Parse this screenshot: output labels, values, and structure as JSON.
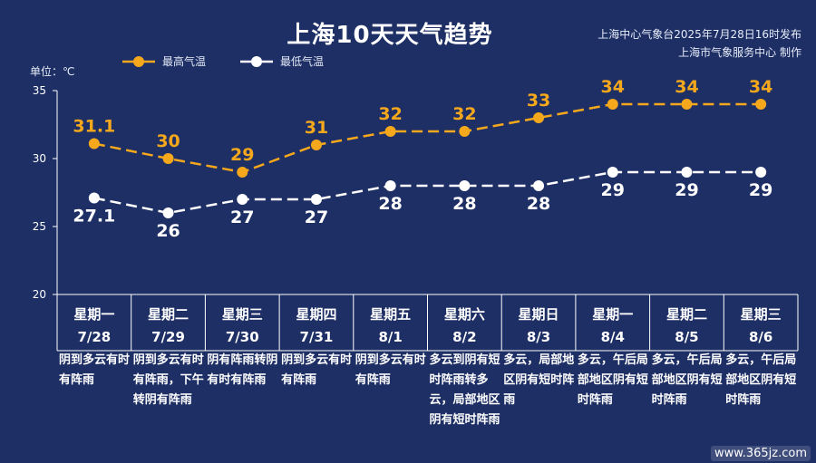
{
  "title": "上海10天天气趋势",
  "publisher": {
    "line1": "上海中心气象台2025年7月28日16时发布",
    "line2": "上海市气象服务中心 制作"
  },
  "unit_label": "单位：℃",
  "watermark": "www.365jz.com",
  "colors": {
    "background": "#1e2f66",
    "high": "#f5a81c",
    "low": "#ffffff"
  },
  "chart_data": {
    "type": "line",
    "categories": [
      "7/28",
      "7/29",
      "7/30",
      "7/31",
      "8/1",
      "8/2",
      "8/3",
      "8/4",
      "8/5",
      "8/6"
    ],
    "series": [
      {
        "name": "最高气温",
        "values": [
          31.1,
          30,
          29,
          31,
          32,
          32,
          33,
          34,
          34,
          34
        ],
        "labels": [
          "31.1",
          "30",
          "29",
          "31",
          "32",
          "32",
          "33",
          "34",
          "34",
          "34"
        ]
      },
      {
        "name": "最低气温",
        "values": [
          27.1,
          26,
          27,
          27,
          28,
          28,
          28,
          29,
          29,
          29
        ],
        "labels": [
          "27.1",
          "26",
          "27",
          "27",
          "28",
          "28",
          "28",
          "29",
          "29",
          "29"
        ]
      }
    ],
    "ylim": [
      20,
      35
    ],
    "yticks": [
      "20",
      "25",
      "30",
      "35"
    ],
    "line_style": "dashed",
    "legend_position": "top-left",
    "grid": false
  },
  "days": [
    {
      "weekday": "星期一",
      "date": "7/28",
      "desc": "阴到多云有时有阵雨"
    },
    {
      "weekday": "星期二",
      "date": "7/29",
      "desc": "阴到多云有时有阵雨，下午转阴有阵雨"
    },
    {
      "weekday": "星期三",
      "date": "7/30",
      "desc": "阴有阵雨转阴有时有阵雨"
    },
    {
      "weekday": "星期四",
      "date": "7/31",
      "desc": "阴到多云有时有阵雨"
    },
    {
      "weekday": "星期五",
      "date": "8/1",
      "desc": "阴到多云有时有阵雨"
    },
    {
      "weekday": "星期六",
      "date": "8/2",
      "desc": "多云到阴有短时阵雨转多云，局部地区阴有短时阵雨"
    },
    {
      "weekday": "星期日",
      "date": "8/3",
      "desc": "多云，局部地区阴有短时阵雨"
    },
    {
      "weekday": "星期一",
      "date": "8/4",
      "desc": "多云，午后局部地区阴有短时阵雨"
    },
    {
      "weekday": "星期二",
      "date": "8/5",
      "desc": "多云，午后局部地区阴有短时阵雨"
    },
    {
      "weekday": "星期三",
      "date": "8/6",
      "desc": "多云，午后局部地区阴有短时阵雨"
    }
  ]
}
